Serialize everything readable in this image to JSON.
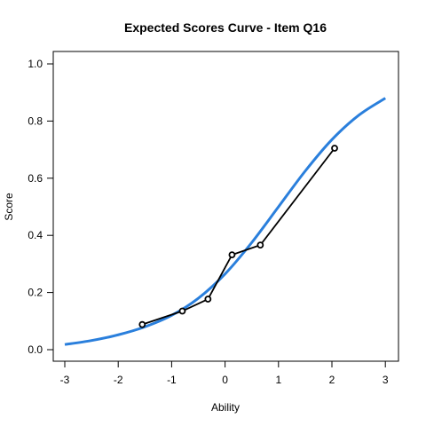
{
  "chart_data": {
    "type": "line",
    "title": "Expected Scores Curve - Item  Q16",
    "xlabel": "Ability",
    "ylabel": "Score",
    "xlim": [
      -3,
      3
    ],
    "ylim": [
      0,
      1
    ],
    "x_ticks": [
      -3,
      -2,
      -1,
      0,
      1,
      2,
      3
    ],
    "y_ticks": [
      0.0,
      0.2,
      0.4,
      0.6,
      0.8,
      1.0
    ],
    "x_tick_labels": [
      "-3",
      "-2",
      "-1",
      "0",
      "1",
      "2",
      "3"
    ],
    "y_tick_labels": [
      "0.0",
      "0.2",
      "0.4",
      "0.6",
      "0.8",
      "1.0"
    ],
    "grid": false,
    "series": [
      {
        "kind": "curve",
        "color": "#2a7fdc",
        "x": [
          -3.0,
          -2.5,
          -2.0,
          -1.5,
          -1.0,
          -0.5,
          0.0,
          0.5,
          1.0,
          1.5,
          2.0,
          2.5,
          3.0
        ],
        "values": [
          0.018,
          0.032,
          0.052,
          0.08,
          0.12,
          0.18,
          0.265,
          0.375,
          0.5,
          0.625,
          0.735,
          0.82,
          0.88
        ]
      },
      {
        "kind": "points-line",
        "color": "#000000",
        "x": [
          -1.55,
          -0.8,
          -0.32,
          0.13,
          0.66,
          2.05
        ],
        "values": [
          0.088,
          0.135,
          0.177,
          0.332,
          0.366,
          0.705
        ]
      }
    ]
  }
}
